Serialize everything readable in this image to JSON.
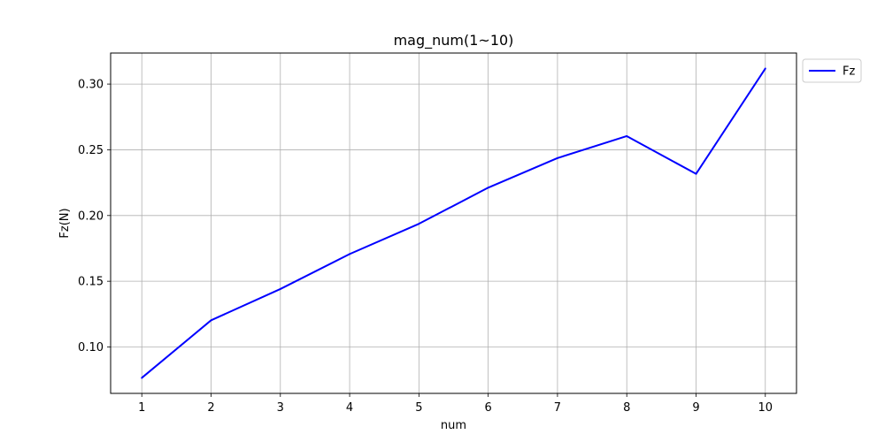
{
  "chart_data": {
    "type": "line",
    "title": "mag_num(1~10)",
    "xlabel": "num",
    "ylabel": "Fz(N)",
    "x": [
      1,
      2,
      3,
      4,
      5,
      6,
      7,
      8,
      9,
      10
    ],
    "x_ticks": [
      "1",
      "2",
      "3",
      "4",
      "5",
      "6",
      "7",
      "8",
      "9",
      "10"
    ],
    "y_ticks": [
      "0.10",
      "0.15",
      "0.20",
      "0.25",
      "0.30"
    ],
    "xlim": [
      0.55,
      10.45
    ],
    "ylim": [
      0.0647,
      0.3236
    ],
    "grid": true,
    "legend_position": "outside-top-right",
    "series": [
      {
        "name": "Fz",
        "color": "#0000ff",
        "values": [
          0.0765,
          0.1203,
          0.1441,
          0.1707,
          0.1937,
          0.2212,
          0.2437,
          0.2604,
          0.2317,
          0.3118
        ]
      }
    ]
  }
}
